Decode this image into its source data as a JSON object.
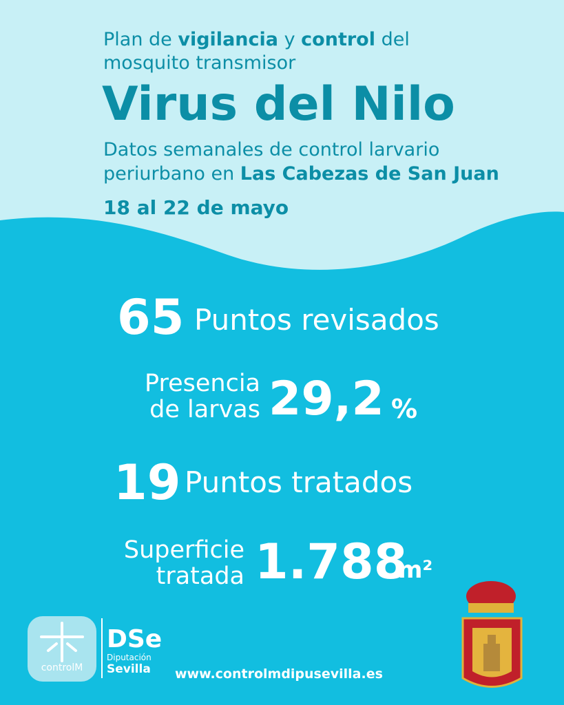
{
  "header": {
    "line1": {
      "a": "Plan de",
      "b": "vigilancia",
      "c": "y",
      "d": "control",
      "e": "del"
    },
    "line2": "mosquito transmisor",
    "title": "Virus del Nilo",
    "subtitle1": "Datos semanales de control larvario",
    "subtitle2": {
      "a": "periurbano en",
      "b": "Las Cabezas de San Juan"
    },
    "date": "18 al 22 de mayo"
  },
  "stats": {
    "revisados": {
      "value": 65,
      "label": "Puntos revisados"
    },
    "larvas": {
      "label1": "Presencia",
      "label2": "de larvas",
      "value": "29,2",
      "unit": "%"
    },
    "tratados": {
      "value": 19,
      "label": "Puntos tratados"
    },
    "superficie": {
      "label1": "Superficie",
      "label2": "tratada",
      "value": "1.788",
      "unit": "m²"
    }
  },
  "footer": {
    "logo1": "controlM",
    "logo2a": "Diputación",
    "logo2b": "Sevilla",
    "url": "www.controlmdipusevilla.es"
  }
}
